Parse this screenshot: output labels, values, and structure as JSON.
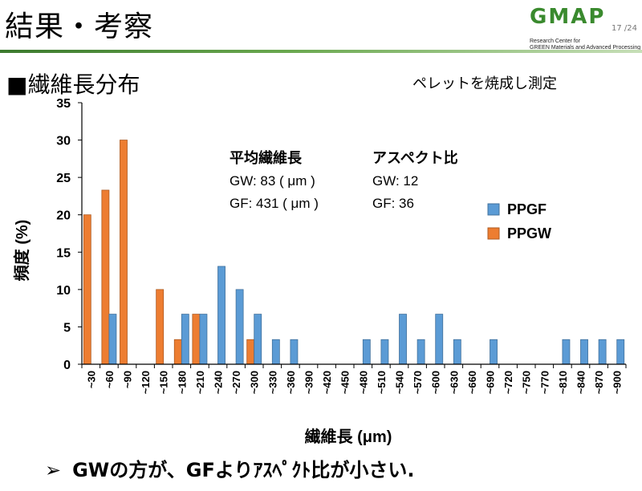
{
  "slide": {
    "title": "結果・考察",
    "section_heading": "■繊維長分布",
    "note": "ペレットを焼成し測定",
    "conclusion": "GWの方が、GFよりｱｽﾍﾟｸﾄ比が小さい.",
    "conclusion_bullet": "➢",
    "page_number": "17 /24"
  },
  "logo": {
    "name": "GMAP",
    "line1": "Research Center for",
    "line2": "GREEN Materials and Advanced Processing",
    "color": "#3a8a2e"
  },
  "annotations": {
    "avg_title": "平均繊維長",
    "avg_gw": "GW: 83 ( μm )",
    "avg_gf": "GF: 431 ( μm )",
    "aspect_title": "アスペクト比",
    "aspect_gw": "GW: 12",
    "aspect_gf": "GF: 36"
  },
  "chart_data": {
    "type": "bar",
    "title": "",
    "xlabel": "繊維長 (μm)",
    "ylabel": "頻度 (%)",
    "ylim": [
      0,
      35
    ],
    "yticks": [
      0,
      5,
      10,
      15,
      20,
      25,
      30,
      35
    ],
    "categories": [
      "~30",
      "~60",
      "~90",
      "~120",
      "~150",
      "~180",
      "~210",
      "~240",
      "~270",
      "~300",
      "~330",
      "~360",
      "~390",
      "~420",
      "~450",
      "~480",
      "~510",
      "~540",
      "~570",
      "~600",
      "~630",
      "~660",
      "~690",
      "~720",
      "~750",
      "~770",
      "~810",
      "~840",
      "~870",
      "~900"
    ],
    "series": [
      {
        "name": "PPGW",
        "color": "#ed7d31",
        "values": [
          20,
          23.3,
          30,
          0,
          10,
          3.3,
          6.7,
          0,
          0,
          3.3,
          0,
          0,
          0,
          0,
          0,
          0,
          0,
          0,
          0,
          0,
          0,
          0,
          0,
          0,
          0,
          0,
          0,
          0,
          0,
          0
        ]
      },
      {
        "name": "PPGF",
        "color": "#5b9bd5",
        "values": [
          0,
          6.7,
          0,
          0,
          0,
          6.7,
          6.7,
          13.1,
          10,
          6.7,
          3.3,
          3.3,
          0,
          0,
          0,
          3.3,
          3.3,
          6.7,
          3.3,
          6.7,
          3.3,
          0,
          3.3,
          0,
          0,
          0,
          3.3,
          3.3,
          3.3,
          3.3
        ]
      }
    ],
    "legend": [
      "PPGF",
      "PPGW"
    ],
    "legend_position": "right"
  }
}
